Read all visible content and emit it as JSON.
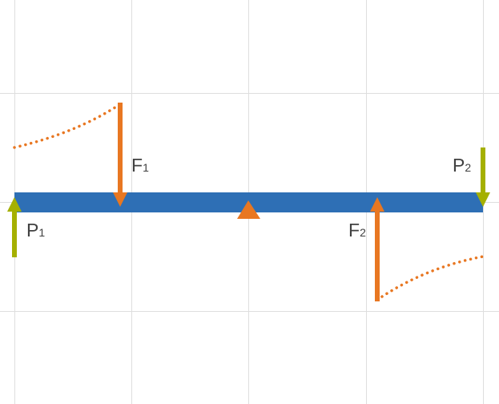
{
  "colors": {
    "beam": "#2e6fb5",
    "force_arrow": "#e87722",
    "p_arrow": "#a5b000",
    "grid": "#dedede",
    "curve": "#e87722",
    "label": "#404040"
  },
  "labels": {
    "f1": {
      "main": "F",
      "sub": "1"
    },
    "f2": {
      "main": "F",
      "sub": "2"
    },
    "p1": {
      "main": "P",
      "sub": "1"
    },
    "p2": {
      "main": "P",
      "sub": "2"
    }
  },
  "icons": {
    "fulcrum": "triangle-fulcrum-icon",
    "force": "arrow-icon",
    "curve": "dotted-curve"
  }
}
